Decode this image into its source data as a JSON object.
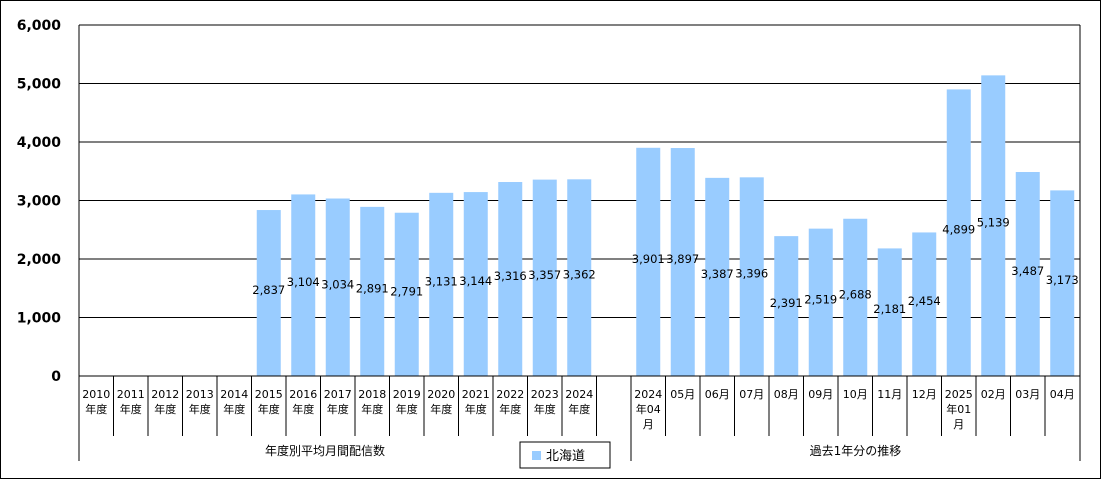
{
  "chart_data": {
    "type": "bar",
    "ylim": [
      0,
      6000
    ],
    "yticks": [
      0,
      1000,
      2000,
      3000,
      4000,
      5000,
      6000
    ],
    "ytick_labels": [
      "0",
      "1,000",
      "2,000",
      "3,000",
      "4,000",
      "5,000",
      "6,000"
    ],
    "grid": true,
    "bar_color": "#99ccff",
    "legend": {
      "position": "bottom-center",
      "label": "北海道"
    },
    "groups": [
      {
        "label": "年度別平均月間配信数",
        "categories": [
          [
            "2010",
            "年度"
          ],
          [
            "2011",
            "年度"
          ],
          [
            "2012",
            "年度"
          ],
          [
            "2013",
            "年度"
          ],
          [
            "2014",
            "年度"
          ],
          [
            "2015",
            "年度"
          ],
          [
            "2016",
            "年度"
          ],
          [
            "2017",
            "年度"
          ],
          [
            "2018",
            "年度"
          ],
          [
            "2019",
            "年度"
          ],
          [
            "2020",
            "年度"
          ],
          [
            "2021",
            "年度"
          ],
          [
            "2022",
            "年度"
          ],
          [
            "2023",
            "年度"
          ],
          [
            "2024",
            "年度"
          ]
        ],
        "values": [
          null,
          null,
          null,
          null,
          null,
          2837,
          3104,
          3034,
          2891,
          2791,
          3131,
          3144,
          3316,
          3357,
          3362
        ],
        "value_labels": [
          "",
          "",
          "",
          "",
          "",
          "2,837",
          "3,104",
          "3,034",
          "2,891",
          "2,791",
          "3,131",
          "3,144",
          "3,316",
          "3,357",
          "3,362"
        ]
      },
      {
        "label": "過去1年分の推移",
        "categories": [
          [
            "2024",
            "年04",
            "月"
          ],
          [
            "05月"
          ],
          [
            "06月"
          ],
          [
            "07月"
          ],
          [
            "08月"
          ],
          [
            "09月"
          ],
          [
            "10月"
          ],
          [
            "11月"
          ],
          [
            "12月"
          ],
          [
            "2025",
            "年01",
            "月"
          ],
          [
            "02月"
          ],
          [
            "03月"
          ],
          [
            "04月"
          ]
        ],
        "values": [
          3901,
          3897,
          3387,
          3396,
          2391,
          2519,
          2688,
          2181,
          2454,
          4899,
          5139,
          3487,
          3173
        ],
        "value_labels": [
          "3,901",
          "3,897",
          "3,387",
          "3,396",
          "2,391",
          "2,519",
          "2,688",
          "2,181",
          "2,454",
          "4,899",
          "5,139",
          "3,487",
          "3,173"
        ]
      }
    ]
  }
}
